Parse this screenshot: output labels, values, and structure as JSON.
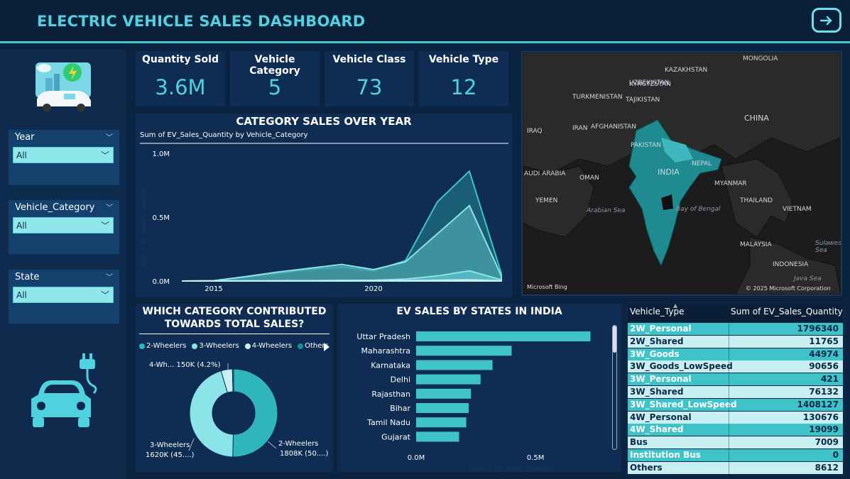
{
  "header": {
    "title": "ELECTRIC VEHICLE SALES DASHBOARD"
  },
  "filters": [
    {
      "label": "Year",
      "value": "All"
    },
    {
      "label": "Vehicle_Category",
      "value": "All"
    },
    {
      "label": "State",
      "value": "All"
    }
  ],
  "kpis": [
    {
      "label": "Quantity Sold",
      "value": "3.6M"
    },
    {
      "label": "Vehicle Category",
      "value": "5"
    },
    {
      "label": "Vehicle Class",
      "value": "73"
    },
    {
      "label": "Vehicle Type",
      "value": "12"
    }
  ],
  "colors": {
    "accent": "#4fd1e0",
    "panel": "#0f2d52",
    "background": "#0b2340",
    "bar": "#3ec3c9"
  },
  "area_chart": {
    "title": "CATEGORY SALES OVER YEAR",
    "subtitle": "Sum of EV_Sales_Quantity by Vehicle_Category",
    "ylabel": "Sum of EV_Sales_Quantity"
  },
  "donut": {
    "title_line1": "WHICH CATEGORY CONTRIBUTED",
    "title_line2": "TOWARDS TOTAL SALES?",
    "labels": {
      "top": "4-Wh... 150K (4.2%)",
      "left_1": "3-Wheelers",
      "left_2": "1620K (45....)",
      "right_1": "2-Wheelers",
      "right_2": "1808K (50....)"
    }
  },
  "bar_chart": {
    "title": "EV SALES BY STATES IN INDIA",
    "xlabel": "Sum of EV_Sales_Quantity"
  },
  "map": {
    "attribution": "Microsoft Bing",
    "copyright": "© 2025 Microsoft Corporation",
    "labels": [
      "MONGOLIA",
      "KAZAKHSTAN",
      "UZBEKISTAN",
      "KYRGYZSTAN",
      "TURKMENISTAN",
      "TAJIKISTAN",
      "CHINA",
      "IRAQ",
      "IRAN",
      "AFGHANISTAN",
      "PAKISTAN",
      "INDIA",
      "AUDI ARABIA",
      "OMAN",
      "NEPAL",
      "YEMEN",
      "MYANMAR",
      "THAILAND",
      "VIETNAM",
      "Arabian Sea",
      "Bay of Bengal",
      "MALAYSIA",
      "INDONESIA",
      "Java Sea",
      "Sulawesi Sea"
    ]
  },
  "table": {
    "headers": [
      "Vehicle_Type",
      "Sum of EV_Sales_Quantity"
    ],
    "rows": [
      [
        "2W_Personal",
        "1796340"
      ],
      [
        "2W_Shared",
        "11765"
      ],
      [
        "3W_Goods",
        "44974"
      ],
      [
        "3W_Goods_LowSpeed",
        "90656"
      ],
      [
        "3W_Personal",
        "421"
      ],
      [
        "3W_Shared",
        "76132"
      ],
      [
        "3W_Shared_LowSpeed",
        "1408127"
      ],
      [
        "4W_Personal",
        "130676"
      ],
      [
        "4W_Shared",
        "19099"
      ],
      [
        "Bus",
        "7009"
      ],
      [
        "Institution Bus",
        "0"
      ],
      [
        "Others",
        "8612"
      ]
    ]
  },
  "chart_data": [
    {
      "type": "area",
      "title": "CATEGORY SALES OVER YEAR",
      "subtitle": "Sum of EV_Sales_Quantity by Vehicle_Category",
      "ylabel": "Sum of EV_Sales_Quantity",
      "x": [
        2014,
        2015,
        2016,
        2017,
        2018,
        2019,
        2020,
        2021,
        2022,
        2023,
        2024
      ],
      "x_ticks": [
        "2015",
        "2020"
      ],
      "y_ticks": [
        "0.0M",
        "0.5M",
        "1.0M"
      ],
      "ylim": [
        0,
        1000000
      ],
      "series": [
        {
          "values": [
            0,
            2000,
            30000,
            60000,
            90000,
            110000,
            80000,
            160000,
            620000,
            860000,
            60000
          ]
        },
        {
          "values": [
            0,
            3000,
            35000,
            70000,
            100000,
            130000,
            90000,
            150000,
            370000,
            590000,
            40000
          ]
        },
        {
          "values": [
            0,
            500,
            1000,
            2000,
            3000,
            5000,
            6000,
            15000,
            40000,
            80000,
            10000
          ]
        },
        {
          "values": [
            0,
            0,
            500,
            1000,
            1000,
            2000,
            2000,
            3000,
            6000,
            10000,
            2000
          ]
        }
      ]
    },
    {
      "type": "pie",
      "title": "WHICH CATEGORY CONTRIBUTED TOWARDS TOTAL SALES?",
      "legend_position": "top",
      "categories": [
        "2-Wheelers",
        "3-Wheelers",
        "4-Wheelers",
        "Others"
      ],
      "values": [
        1808000,
        1620000,
        150000,
        16000
      ],
      "colors": [
        "#2fb6bd",
        "#8ae3e6",
        "#c8f0f2",
        "#1a8e96"
      ]
    },
    {
      "type": "bar",
      "title": "EV SALES BY STATES IN INDIA",
      "xlabel": "Sum of EV_Sales_Quantity",
      "categories": [
        "Uttar Pradesh",
        "Maharashtra",
        "Karnataka",
        "Delhi",
        "Rajasthan",
        "Bihar",
        "Tamil Nadu",
        "Gujarat"
      ],
      "values": [
        730000,
        400000,
        320000,
        270000,
        230000,
        220000,
        210000,
        180000
      ],
      "x_ticks": [
        "0.0M",
        "0.5M"
      ],
      "xlim": [
        0,
        800000
      ]
    }
  ]
}
